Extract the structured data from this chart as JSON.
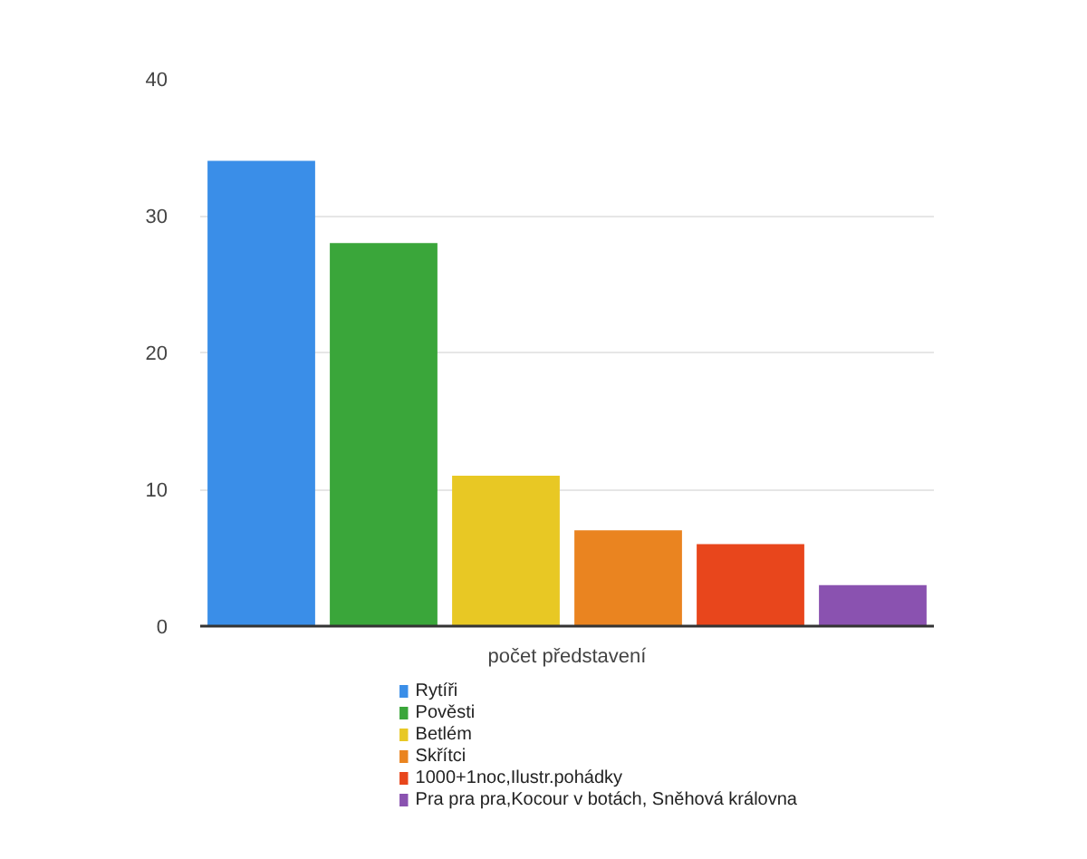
{
  "chart_data": {
    "type": "bar",
    "categories": [
      "počet představení"
    ],
    "series": [
      {
        "name": "Rytíři",
        "color": "#3a8ee8",
        "values": [
          34
        ]
      },
      {
        "name": "Pověsti",
        "color": "#3aa63a",
        "values": [
          28
        ]
      },
      {
        "name": "Betlém",
        "color": "#e8c824",
        "values": [
          11
        ]
      },
      {
        "name": "Skřítci",
        "color": "#ea8420",
        "values": [
          7
        ]
      },
      {
        "name": "1000+1noc,Ilustr.pohádky",
        "color": "#e8461c",
        "values": [
          6
        ]
      },
      {
        "name": "Pra pra pra,Kocour v botách, Sněhová královna",
        "color": "#8a52b0",
        "values": [
          3
        ]
      }
    ],
    "ylim": [
      0,
      40
    ],
    "yticks": [
      0,
      10,
      20,
      30,
      40
    ],
    "grid": "y",
    "legend": "bottom"
  }
}
